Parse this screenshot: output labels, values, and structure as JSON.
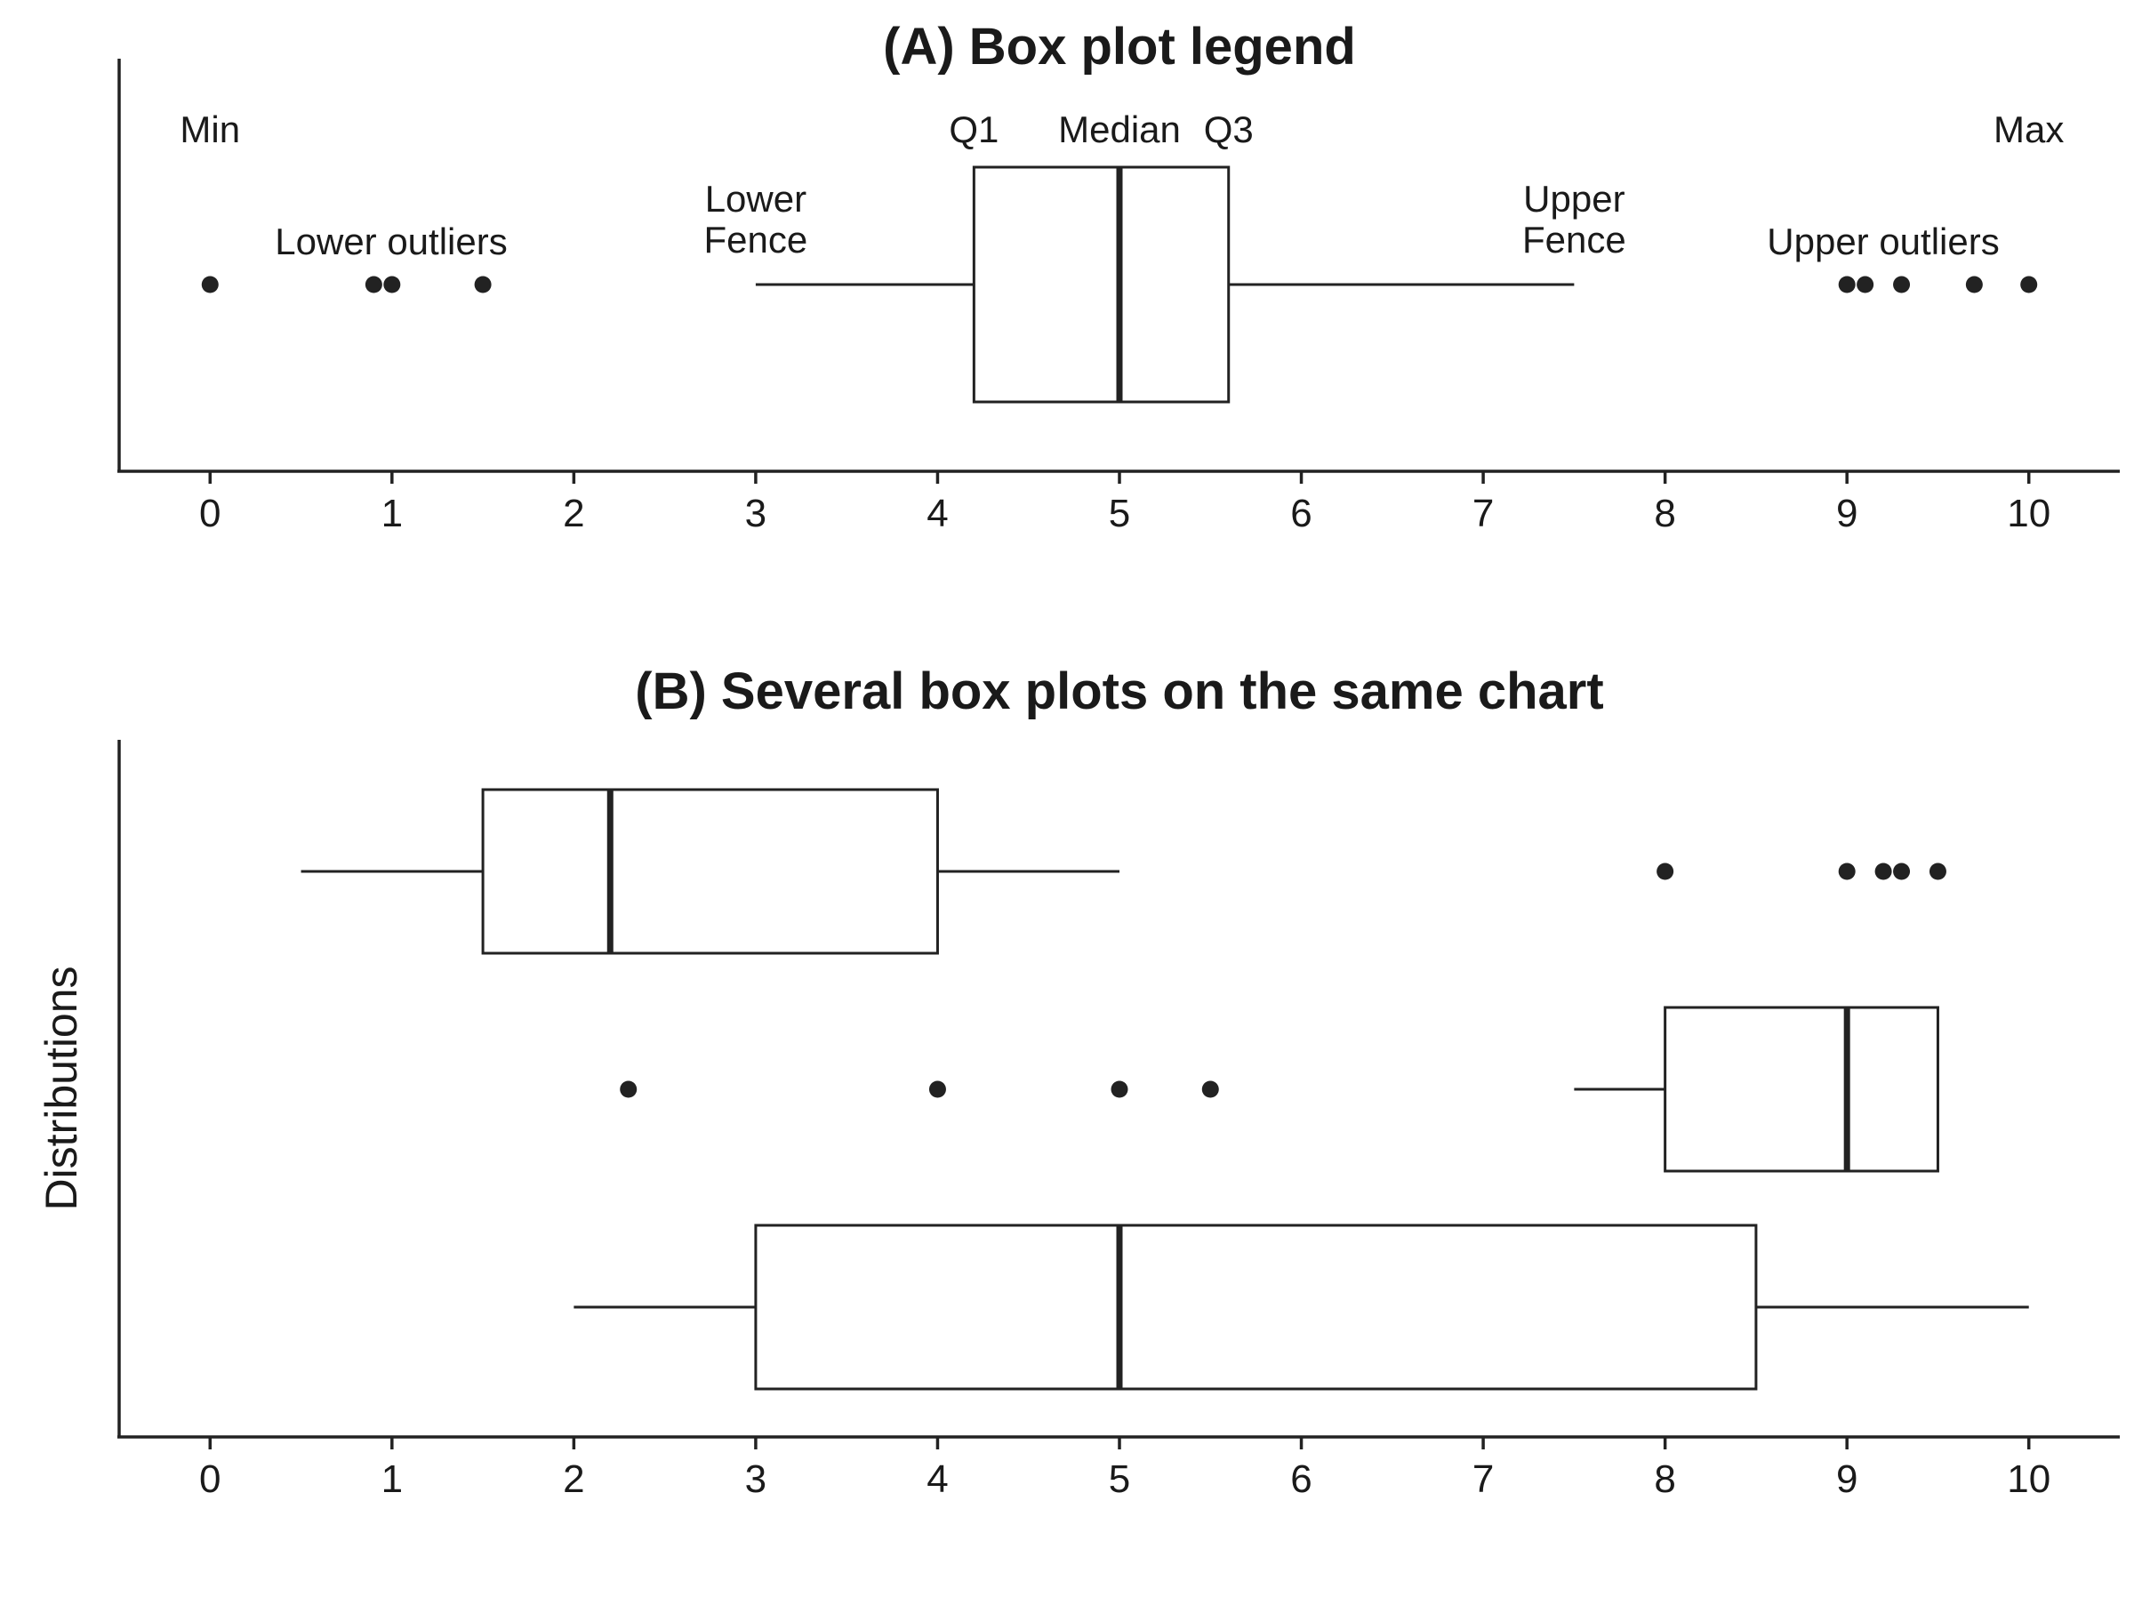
{
  "colors": {
    "ink": "#222222",
    "box_fill": "#ffffff"
  },
  "chart_data": [
    {
      "type": "box",
      "title": "(A) Box plot legend",
      "xlabel": "",
      "ylabel": "",
      "xlim": [
        -0.5,
        10.5
      ],
      "x_ticks": [
        0,
        1,
        2,
        3,
        4,
        5,
        6,
        7,
        8,
        9,
        10
      ],
      "grid": false,
      "boxes": [
        {
          "q1": 4.2,
          "median": 5.0,
          "q3": 5.6,
          "whisker_low": 3.0,
          "whisker_high": 7.5,
          "outliers": [
            0,
            0.9,
            1.0,
            1.5,
            9.0,
            9.1,
            9.3,
            9.7,
            10.0
          ]
        }
      ],
      "annotations": [
        {
          "text": "Min",
          "x": 0
        },
        {
          "text": "Lower outliers",
          "x": 1.0
        },
        {
          "text": "Lower",
          "x": 3.0
        },
        {
          "text": "Fence",
          "x": 3.0
        },
        {
          "text": "Q1",
          "x": 4.2
        },
        {
          "text": "Median",
          "x": 5.0
        },
        {
          "text": "Q3",
          "x": 5.6
        },
        {
          "text": "Upper",
          "x": 7.5
        },
        {
          "text": "Fence",
          "x": 7.5
        },
        {
          "text": "Upper outliers",
          "x": 9.2
        },
        {
          "text": "Max",
          "x": 10
        }
      ]
    },
    {
      "type": "box",
      "title": "(B) Several box plots on the same chart",
      "xlabel": "",
      "ylabel": "Distributions",
      "xlim": [
        -0.5,
        10.5
      ],
      "x_ticks": [
        0,
        1,
        2,
        3,
        4,
        5,
        6,
        7,
        8,
        9,
        10
      ],
      "grid": false,
      "boxes": [
        {
          "q1": 1.5,
          "median": 2.2,
          "q3": 4.0,
          "whisker_low": 0.5,
          "whisker_high": 5.0,
          "outliers": [
            8.0,
            9.0,
            9.2,
            9.3,
            9.5
          ]
        },
        {
          "q1": 8.0,
          "median": 9.0,
          "q3": 9.5,
          "whisker_low": 7.5,
          "whisker_high": 9.5,
          "outliers": [
            2.3,
            4.0,
            5.0,
            5.5
          ]
        },
        {
          "q1": 3.0,
          "median": 5.0,
          "q3": 8.5,
          "whisker_low": 2.0,
          "whisker_high": 10.0,
          "outliers": []
        }
      ]
    }
  ]
}
